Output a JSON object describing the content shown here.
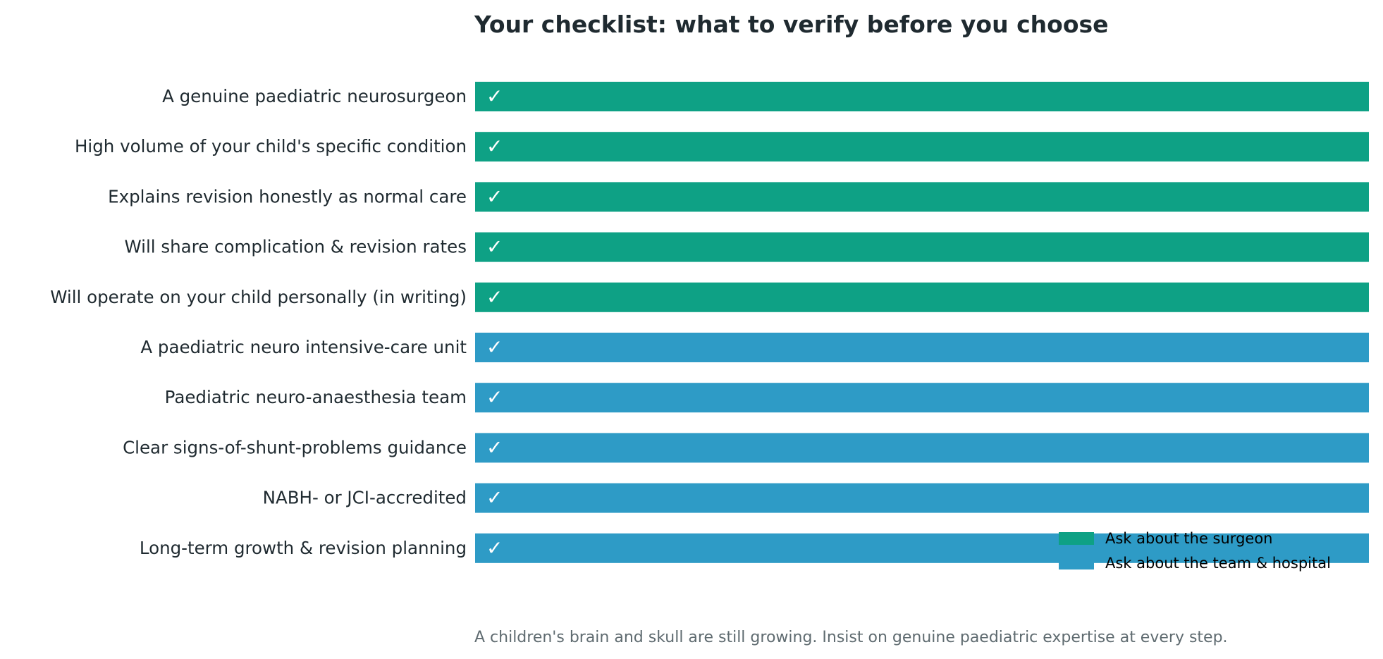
{
  "chart_data": {
    "type": "bar",
    "orientation": "horizontal",
    "title": "Your checklist: what to verify before you choose",
    "categories": [
      "A genuine paediatric neurosurgeon",
      "High volume of your child's specific condition",
      "Explains revision honestly as normal care",
      "Will share complication & revision rates",
      "Will operate on your child personally (in writing)",
      "A paediatric neuro intensive-care unit",
      "Paediatric neuro-anaesthesia team",
      "Clear signs-of-shunt-problems guidance",
      "NABH- or JCI-accredited",
      "Long-term growth & revision planning"
    ],
    "values": [
      1,
      1,
      1,
      1,
      1,
      1,
      1,
      1,
      1,
      1
    ],
    "groups": [
      0,
      0,
      0,
      0,
      0,
      1,
      1,
      1,
      1,
      1
    ],
    "bar_mark": "✓",
    "series": [
      {
        "name": "Ask about the surgeon",
        "color": "#0ea185"
      },
      {
        "name": "Ask about the team & hospital",
        "color": "#2e9bc6"
      }
    ],
    "xlim": [
      0,
      1
    ],
    "grid": false,
    "legend_position": "lower-right",
    "footnote": "A children's brain and skull are still growing. Insist on genuine paediatric expertise at every step."
  }
}
